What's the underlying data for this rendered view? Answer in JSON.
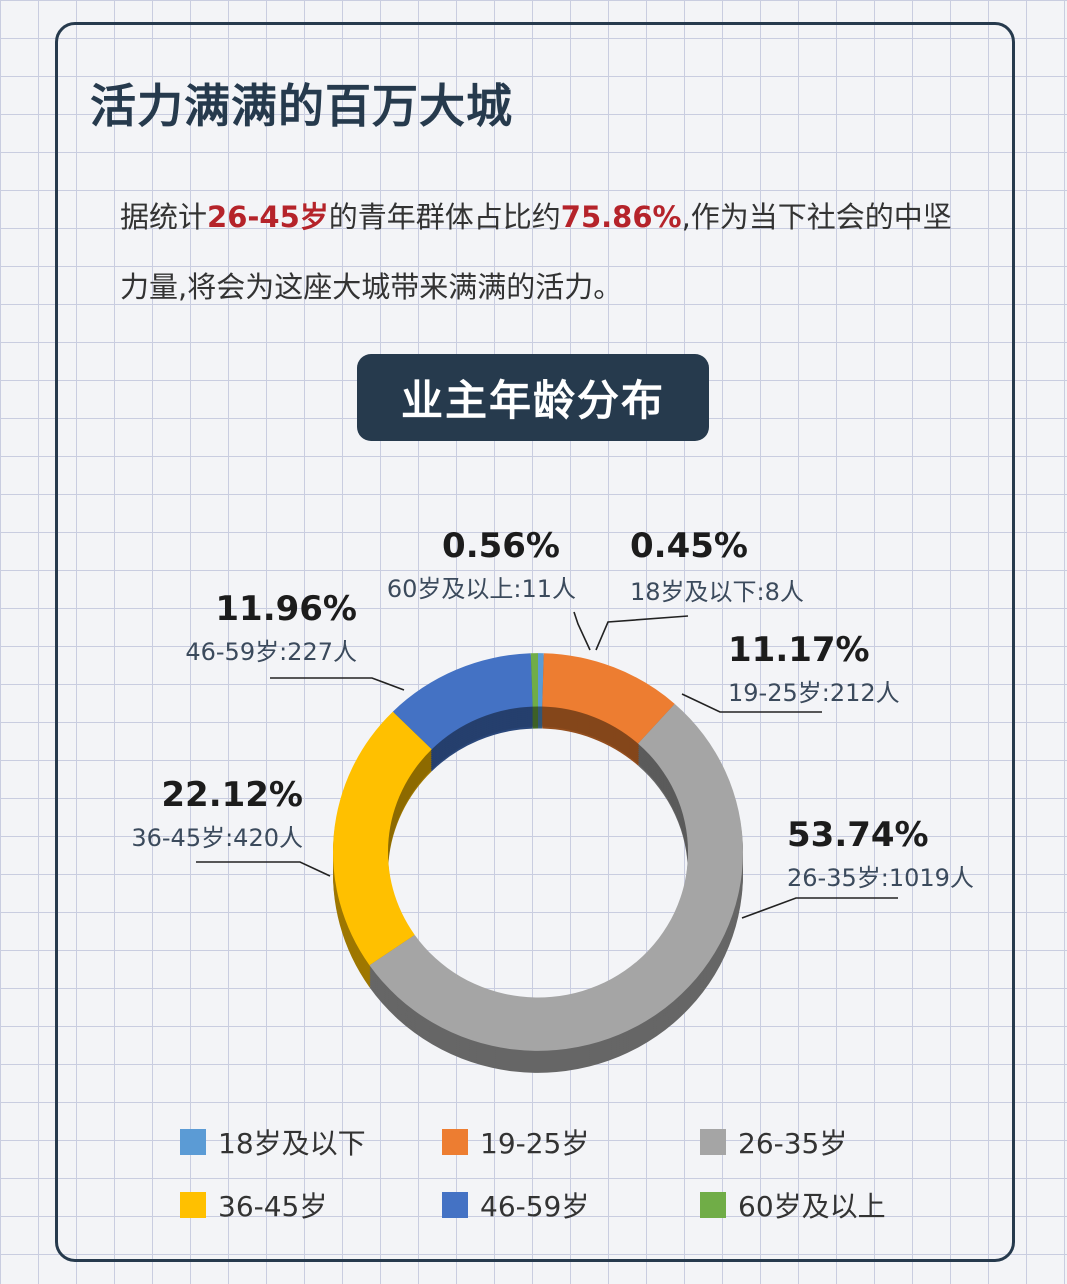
{
  "header": {
    "title": "活力满满的百万大城"
  },
  "intro": {
    "part1": "据统计",
    "highlight1": "26-45岁",
    "part2": "的青年群体占比约",
    "highlight2": "75.86%",
    "part3": ",作为当下社会的中坚力量,将会为这座大城带来满满的活力。"
  },
  "chart_title": "业主年龄分布",
  "chart_data": {
    "type": "pie",
    "donut": true,
    "title": "业主年龄分布",
    "series": [
      {
        "name": "18岁及以下",
        "percent": 0.45,
        "count": 8,
        "label": "0.45%",
        "sublabel": "18岁及以下:8人",
        "color": "#5b9bd5"
      },
      {
        "name": "19-25岁",
        "percent": 11.17,
        "count": 212,
        "label": "11.17%",
        "sublabel": "19-25岁:212人",
        "color": "#ed7d31"
      },
      {
        "name": "26-35岁",
        "percent": 53.74,
        "count": 1019,
        "label": "53.74%",
        "sublabel": "26-35岁:1019人",
        "color": "#a5a5a5"
      },
      {
        "name": "36-45岁",
        "percent": 22.12,
        "count": 420,
        "label": "22.12%",
        "sublabel": "36-45岁:420人",
        "color": "#ffc000"
      },
      {
        "name": "46-59岁",
        "percent": 11.96,
        "count": 227,
        "label": "11.96%",
        "sublabel": "46-59岁:227人",
        "color": "#4472c4"
      },
      {
        "name": "60岁及以上",
        "percent": 0.56,
        "count": 11,
        "label": "0.56%",
        "sublabel": "60岁及以上:11人",
        "color": "#70ad47"
      }
    ],
    "legend_position": "bottom"
  }
}
